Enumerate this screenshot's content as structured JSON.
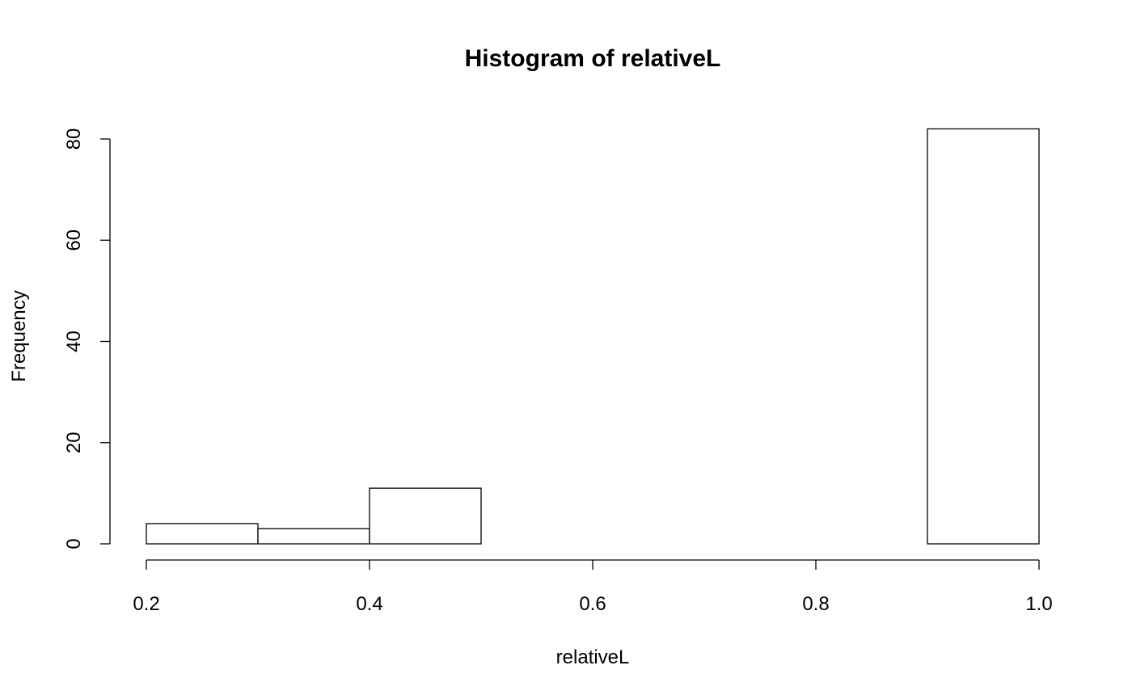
{
  "chart_data": {
    "type": "bar",
    "title": "Histogram of relativeL",
    "xlabel": "relativeL",
    "ylabel": "Frequency",
    "bins": [
      {
        "start": 0.2,
        "end": 0.3,
        "count": 4
      },
      {
        "start": 0.3,
        "end": 0.4,
        "count": 3
      },
      {
        "start": 0.4,
        "end": 0.5,
        "count": 11
      },
      {
        "start": 0.5,
        "end": 0.6,
        "count": 0
      },
      {
        "start": 0.6,
        "end": 0.7,
        "count": 0
      },
      {
        "start": 0.7,
        "end": 0.8,
        "count": 0
      },
      {
        "start": 0.8,
        "end": 0.9,
        "count": 0
      },
      {
        "start": 0.9,
        "end": 1.0,
        "count": 82
      }
    ],
    "xlim": [
      0.2,
      1.0
    ],
    "ylim": [
      0,
      82
    ],
    "x_ticks": [
      0.2,
      0.4,
      0.6,
      0.8,
      1.0
    ],
    "x_tick_labels": [
      "0.2",
      "0.4",
      "0.6",
      "0.8",
      "1.0"
    ],
    "y_ticks": [
      0,
      20,
      40,
      60,
      80
    ],
    "y_tick_labels": [
      "0",
      "20",
      "40",
      "60",
      "80"
    ],
    "grid": false,
    "legend": "none",
    "bar_fill": "#ffffff",
    "bar_stroke": "#000000"
  }
}
